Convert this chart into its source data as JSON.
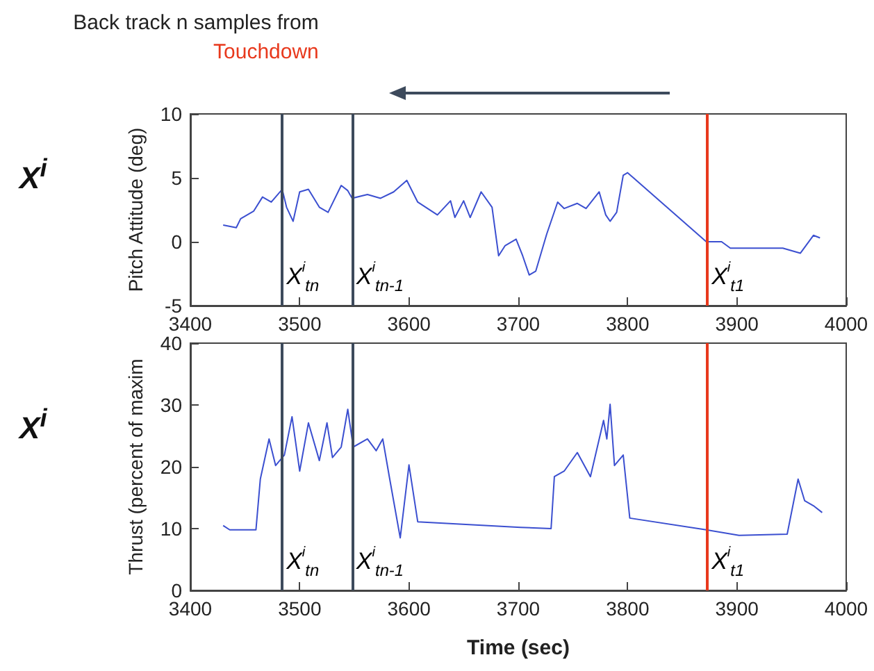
{
  "chart_data": [
    {
      "type": "line",
      "title": "Back track n samples from",
      "subtitle": "Touchdown",
      "ylabel": "Pitch Attitude (deg)",
      "annotations": [
        "X$^{i}$"
      ],
      "x": [
        3430,
        3442,
        3446,
        3458,
        3466,
        3474,
        3484,
        3488,
        3494,
        3500,
        3508,
        3518,
        3526,
        3538,
        3544,
        3548,
        3562,
        3574,
        3586,
        3598,
        3608,
        3626,
        3638,
        3642,
        3650,
        3656,
        3666,
        3676,
        3682,
        3688,
        3698,
        3704,
        3710,
        3716,
        3726,
        3736,
        3742,
        3754,
        3762,
        3774,
        3780,
        3784,
        3790,
        3796,
        3800,
        3872,
        3886,
        3894,
        3942,
        3958,
        3970,
        3976
      ],
      "series": [
        {
          "color": "#3b4fd0",
          "values": [
            1.3,
            1.1,
            1.8,
            2.4,
            3.5,
            3.1,
            4.1,
            2.7,
            1.6,
            3.9,
            4.1,
            2.7,
            2.3,
            4.4,
            4.0,
            3.4,
            3.7,
            3.4,
            3.9,
            4.8,
            3.1,
            2.1,
            3.2,
            1.9,
            3.2,
            1.9,
            3.9,
            2.7,
            -1.1,
            -0.3,
            0.2,
            -1.1,
            -2.6,
            -2.3,
            0.6,
            3.1,
            2.6,
            3.0,
            2.6,
            3.9,
            2.1,
            1.6,
            2.3,
            5.2,
            5.4,
            0,
            0,
            -0.5,
            -0.5,
            -0.9,
            0.5,
            0.3
          ]
        }
      ],
      "xlim": [
        3400,
        4000
      ],
      "xticks": [
        3400,
        3500,
        3600,
        3700,
        3800,
        3900,
        4000
      ],
      "ylim": [
        -5,
        10
      ],
      "yticks": [
        -5,
        0,
        5,
        10
      ],
      "marker": "none",
      "line_style": "solid",
      "ref_lines": [
        {
          "axis": "x",
          "value": 3484,
          "label": "X$^{i}$$_{tn}$",
          "color": "#3d4a5c"
        },
        {
          "axis": "x",
          "value": 3548,
          "label": "X$^{i}$$_{tn-1}$",
          "color": "#3d4a5c"
        },
        {
          "axis": "x",
          "value": 3873,
          "label": "X$^{i}$$_{t1}$",
          "color": "#e8391d"
        }
      ]
    },
    {
      "type": "line",
      "ylabel": "Thrust (percent of maxim",
      "xlabel": "Time (sec)",
      "annotations": [
        "X$^{i}$"
      ],
      "x": [
        3430,
        3436,
        3460,
        3464,
        3472,
        3478,
        3486,
        3493,
        3500,
        3508,
        3518,
        3525,
        3530,
        3538,
        3544,
        3549,
        3562,
        3570,
        3576,
        3582,
        3592,
        3600,
        3608,
        3702,
        3730,
        3733,
        3742,
        3754,
        3766,
        3778,
        3781,
        3784,
        3788,
        3796,
        3802,
        3872,
        3902,
        3946,
        3956,
        3962,
        3970,
        3978
      ],
      "series": [
        {
          "color": "#3b4fd0",
          "values": [
            10.5,
            9.8,
            9.8,
            18.0,
            24.5,
            20.2,
            21.9,
            28.1,
            19.3,
            27.1,
            21.0,
            27.1,
            21.5,
            23.2,
            29.3,
            23.2,
            24.5,
            22.6,
            24.5,
            18.4,
            8.5,
            20.3,
            11.1,
            10.2,
            10.0,
            18.4,
            19.3,
            22.3,
            18.4,
            27.5,
            24.5,
            30.1,
            20.2,
            21.9,
            11.7,
            9.8,
            8.9,
            9.1,
            18.0,
            14.5,
            13.7,
            12.6
          ]
        }
      ],
      "xlim": [
        3400,
        4000
      ],
      "xticks": [
        3400,
        3500,
        3600,
        3700,
        3800,
        3900,
        4000
      ],
      "ylim": [
        0,
        40
      ],
      "yticks": [
        0,
        10,
        20,
        30,
        40
      ],
      "marker": "none",
      "line_style": "solid",
      "ref_lines": [
        {
          "axis": "x",
          "value": 3484,
          "label": "X$^{i}$$_{tn}$",
          "color": "#3d4a5c"
        },
        {
          "axis": "x",
          "value": 3548,
          "label": "X$^{i}$$_{tn-1}$",
          "color": "#3d4a5c"
        },
        {
          "axis": "x",
          "value": 3873,
          "label": "X$^{i}$$_{t1}$",
          "color": "#e8391d"
        }
      ]
    }
  ]
}
